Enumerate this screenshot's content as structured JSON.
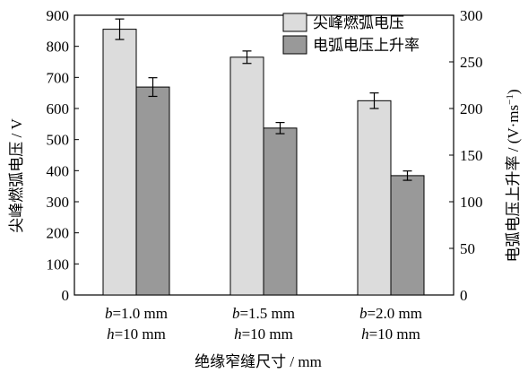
{
  "chart_data": {
    "type": "bar",
    "categories": [
      {
        "line1_var": "b",
        "line1_rest": "=1.0 mm",
        "line2_var": "h",
        "line2_rest": "=10 mm"
      },
      {
        "line1_var": "b",
        "line1_rest": "=1.5 mm",
        "line2_var": "h",
        "line2_rest": "=10 mm"
      },
      {
        "line1_var": "b",
        "line1_rest": "=2.0 mm",
        "line2_var": "h",
        "line2_rest": "=10 mm"
      }
    ],
    "xlabel": "绝缘窄缝尺寸 / mm",
    "y_left": {
      "label": "尖峰燃弧电压 / V",
      "min": 0,
      "max": 900,
      "ticks": [
        0,
        100,
        200,
        300,
        400,
        500,
        600,
        700,
        800,
        900
      ]
    },
    "y_right": {
      "label_main": "电弧电压上升率 / (V·ms",
      "label_sup": "−1",
      "label_end": ")",
      "min": 0,
      "max": 300,
      "ticks": [
        0,
        50,
        100,
        150,
        200,
        250,
        300
      ]
    },
    "series": [
      {
        "name": "尖峰燃弧电压",
        "axis": "left",
        "color": "#dcdcdc",
        "values": [
          855,
          765,
          625
        ],
        "errors": [
          33,
          20,
          25
        ]
      },
      {
        "name": "电弧电压上升率",
        "axis": "right",
        "color": "#999999",
        "values": [
          223,
          179,
          128
        ],
        "errors": [
          10,
          6,
          5
        ]
      }
    ],
    "legend": "top-right",
    "grid": false
  }
}
